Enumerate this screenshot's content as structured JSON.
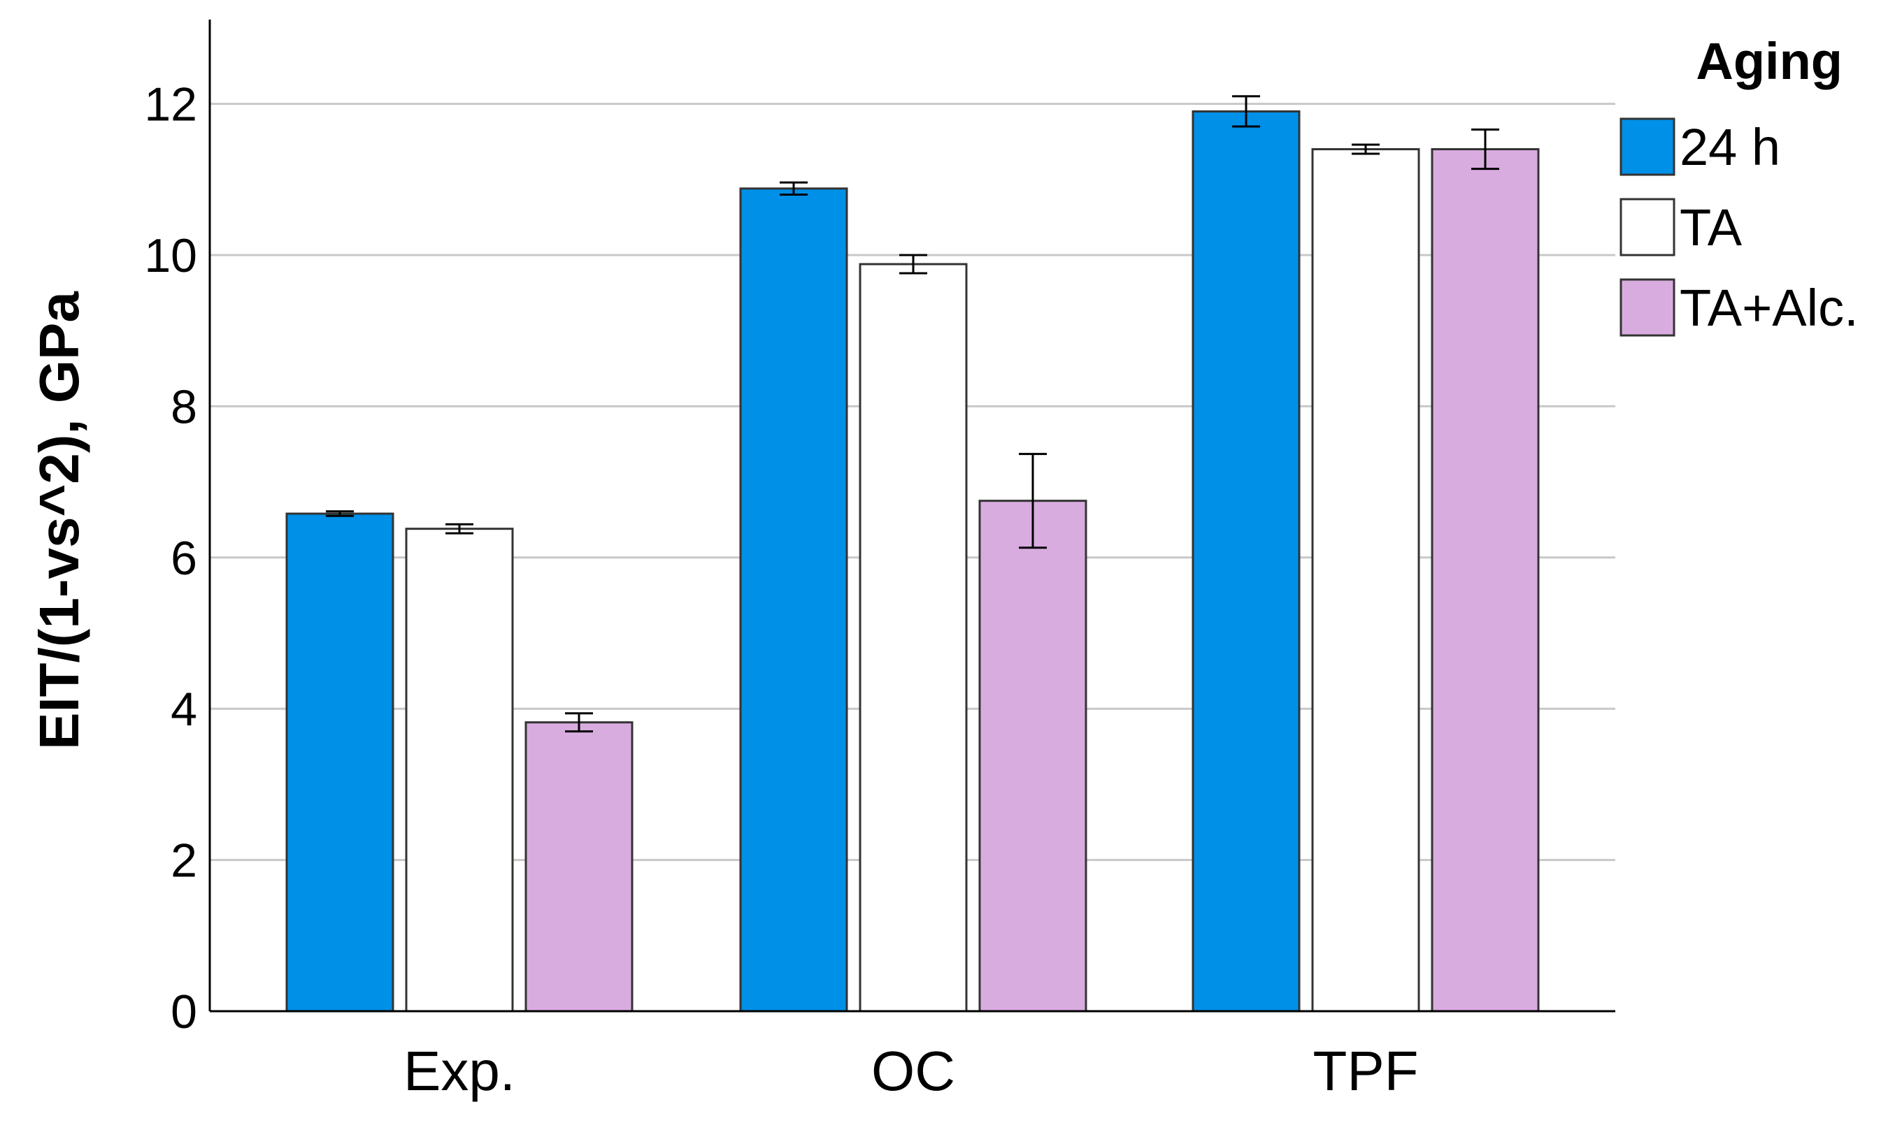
{
  "chart_data": {
    "type": "bar",
    "title": "",
    "xlabel": "",
    "ylabel": "EIT/(1-vs^2), GPa",
    "ylim": [
      0,
      13
    ],
    "yticks": [
      0,
      2,
      4,
      6,
      8,
      10,
      12
    ],
    "grid": true,
    "categories": [
      "Exp.",
      "OC",
      "TPF"
    ],
    "legend": {
      "title": "Aging",
      "position": "top-right"
    },
    "series": [
      {
        "name": "24 h",
        "color": "#0090E8",
        "values": [
          6.58,
          10.88,
          11.9
        ],
        "errors": [
          0.03,
          0.08,
          0.2
        ]
      },
      {
        "name": "TA",
        "color": "#FFFFFF",
        "values": [
          6.38,
          9.88,
          11.4
        ],
        "errors": [
          0.06,
          0.12,
          0.06
        ]
      },
      {
        "name": "TA+Alc.",
        "color": "#D9ACE0",
        "values": [
          3.82,
          6.75,
          11.4
        ],
        "errors": [
          0.12,
          0.62,
          0.26
        ]
      }
    ]
  }
}
